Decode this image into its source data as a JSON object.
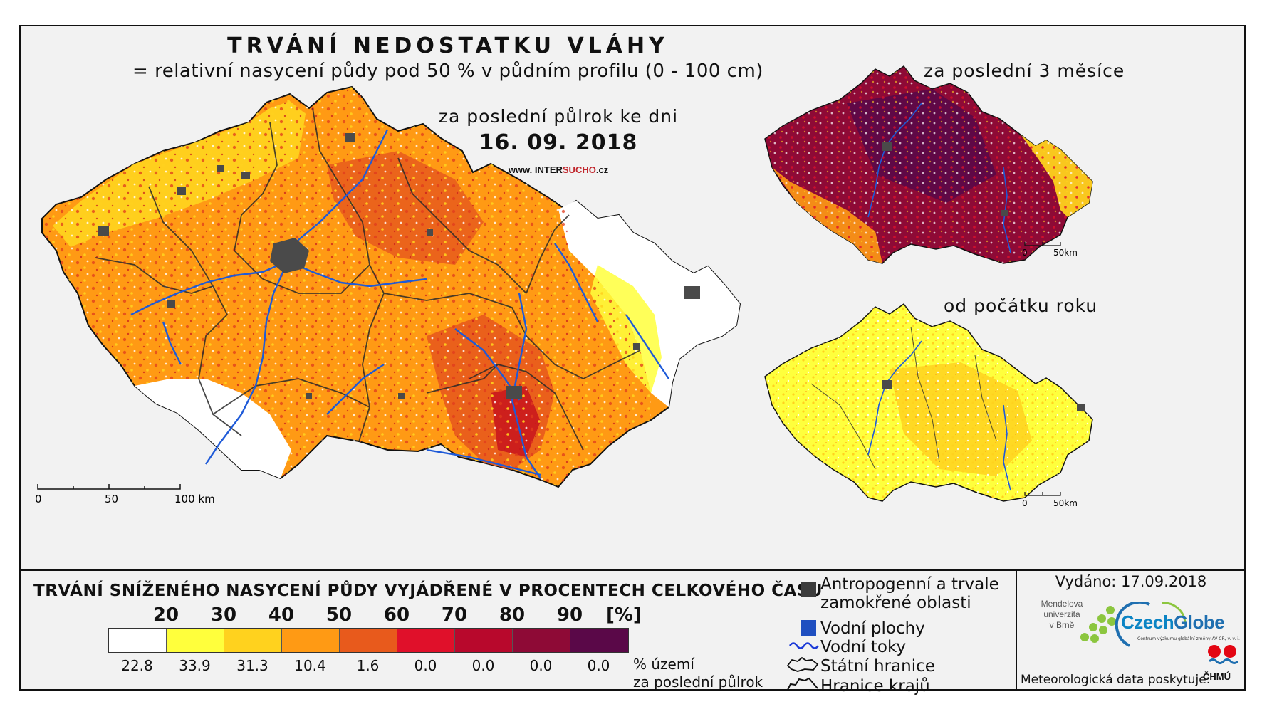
{
  "header": {
    "title": "TRVÁNÍ NEDOSTATKU VLÁHY",
    "subtitle": "= relativní nasycení půdy pod 50 % v půdním profilu (0 - 100 cm)"
  },
  "main_map": {
    "period_label": "za poslední půlrok ke dni",
    "date": "16. 09. 2018",
    "website_prefix": "www. INTER",
    "website_highlight": "SUCHO",
    "website_suffix": ".cz",
    "scale_labels": [
      "0",
      "50",
      "100 km"
    ]
  },
  "mini_maps": [
    {
      "title": "za poslední 3 měsíce",
      "scale_labels": [
        "0",
        "50km"
      ]
    },
    {
      "title": "od počátku roku",
      "scale_labels": [
        "0",
        "50km"
      ]
    }
  ],
  "legend": {
    "title": "TRVÁNÍ SNÍŽENÉHO NASYCENÍ PŮDY VYJÁDŘENÉ V PROCENTECH CELKOVÉHO ČASU",
    "thresholds": [
      "20",
      "30",
      "40",
      "50",
      "60",
      "70",
      "80",
      "90"
    ],
    "unit": "[%]",
    "classes": [
      {
        "color": "#ffffff",
        "percent": "22.8"
      },
      {
        "color": "#ffff3c",
        "percent": "33.9"
      },
      {
        "color": "#ffd21e",
        "percent": "31.3"
      },
      {
        "color": "#ff9a14",
        "percent": "10.4"
      },
      {
        "color": "#e85a1c",
        "percent": "1.6"
      },
      {
        "color": "#e0102a",
        "percent": "0.0"
      },
      {
        "color": "#b8082c",
        "percent": "0.0"
      },
      {
        "color": "#8e0a36",
        "percent": "0.0"
      },
      {
        "color": "#5a0848",
        "percent": "0.0"
      }
    ],
    "percent_label_line1": "% území",
    "percent_label_line2": "za poslední půlrok",
    "items": [
      {
        "icon": "dark-square-icon",
        "label_line1": "Antropogenní a trvale",
        "label_line2": "zamokřené oblasti"
      },
      {
        "icon": "blue-square-icon",
        "label": "Vodní plochy"
      },
      {
        "icon": "wavy-line-icon",
        "label": "Vodní toky"
      },
      {
        "icon": "state-border-icon",
        "label": "Státní hranice"
      },
      {
        "icon": "region-border-icon",
        "label": "Hranice krajů"
      }
    ]
  },
  "footer": {
    "issued": "Vydáno: 17.09.2018",
    "mendel_line1": "Mendelova",
    "mendel_line2": "univerzita",
    "mendel_line3": "v Brně",
    "czechglobe_a": "Czech",
    "czechglobe_b": "Globe",
    "czechglobe_tagline": "Centrum výzkumu globální změny AV ČR, v. v. i.",
    "meteo_label": "Meteorologická data poskytuje:",
    "chmu": "ČHMÚ"
  },
  "colors": {
    "background": "#f2f2f2",
    "rivers": "#1e5ad8",
    "urban": "#4a4a4a",
    "border": "#111111"
  }
}
